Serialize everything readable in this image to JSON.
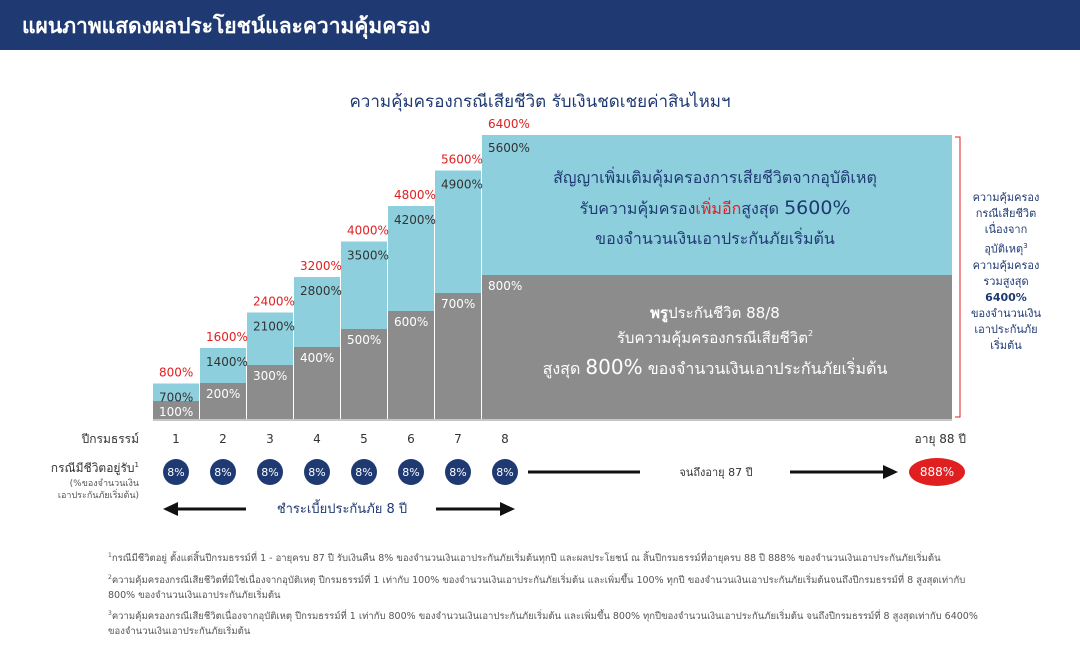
{
  "header": {
    "title": "แผนภาพแสดงผลประโยชน์และความคุ้มครอง"
  },
  "subtitle": "ความคุ้มครองกรณีเสียชีวิต รับเงินชดเชยค่าสินไหมฯ",
  "colors": {
    "header_bg": "#1f3a73",
    "light_blue": "#8ecfdd",
    "gray": "#8c8c8c",
    "dark_navy": "#1f3a73",
    "red": "#e02020"
  },
  "chart_data": {
    "type": "bar",
    "stacked": true,
    "categories": [
      "1",
      "2",
      "3",
      "4",
      "5",
      "6",
      "7",
      "8"
    ],
    "series": [
      {
        "values": [
          100,
          200,
          300,
          400,
          500,
          600,
          700,
          800
        ],
        "labels": [
          "100%",
          "200%",
          "300%",
          "400%",
          "500%",
          "600%",
          "700%",
          "800%"
        ]
      },
      {
        "values": [
          700,
          1400,
          2100,
          2800,
          3500,
          4200,
          4900,
          5600
        ],
        "labels": [
          "700%",
          "1400%",
          "2100%",
          "2800%",
          "3500%",
          "4200%",
          "4900%",
          "5600%"
        ]
      }
    ],
    "totals": [
      800,
      1600,
      2400,
      3200,
      4000,
      4800,
      5600,
      6400
    ],
    "total_labels": [
      "800%",
      "1600%",
      "2400%",
      "3200%",
      "4000%",
      "4800%",
      "5600%",
      "6400%"
    ],
    "xlabel": "ปีกรมธรรม์",
    "end_label": "อายุ 88 ปี",
    "blue_box": {
      "line1": "สัญญาเพิ่มเติมคุ้มครองการเสียชีวิตจากอุบัติเหตุ",
      "line2_pre": "รับความคุ้มครอง",
      "line2_red": "เพิ่มอีก",
      "line2_post": "สูงสุด ",
      "line2_big": "5600%",
      "line3": "ของจำนวนเงินเอาประกันภัยเริ่มต้น"
    },
    "gray_box": {
      "line1_bold": "พรู",
      "line1_rest": "ประกันชีวิต 88/8",
      "line2": "รับความคุ้มครองกรณีเสียชีวิต",
      "line2_sup": "2",
      "line3_pre": "สูงสุด ",
      "line3_big": "800%",
      "line3_post": " ของจำนวนเงินเอาประกันภัยเริ่มต้น"
    }
  },
  "survival": {
    "label": "กรณีมีชีวิตอยู่รับ",
    "label_sup": "1",
    "sub1": "(%ของจำนวนเงิน",
    "sub2": "เอาประกันภัยเริ่มต้น)",
    "values": [
      "8%",
      "8%",
      "8%",
      "8%",
      "8%",
      "8%",
      "8%",
      "8%"
    ],
    "until_text": "จนถึงอายุ 87 ปี",
    "final": "888%"
  },
  "premium": {
    "label": "ชำระเบี้ยประกันภัย 8 ปี"
  },
  "side_note": {
    "l1": "ความคุ้มครอง",
    "l2": "กรณีเสียชีวิต",
    "l3": "เนื่องจาก",
    "l4": "อุบัติเหตุ",
    "l4_sup": "3",
    "l5": "ความคุ้มครอง",
    "l6": "รวมสูงสุด",
    "l7": "6400%",
    "l8": "ของจำนวนเงิน",
    "l9": "เอาประกันภัย",
    "l10": "เริ่มต้น"
  },
  "footnotes": [
    {
      "sup": "1",
      "text": "กรณีมีชีวิตอยู่ ตั้งแต่สิ้นปีกรมธรรม์ที่ 1 - อายุครบ 87 ปี รับเงินคืน 8% ของจำนวนเงินเอาประกันภัยเริ่มต้นทุกปี และผลประโยชน์ ณ สิ้นปีกรมธรรม์ที่อายุครบ 88 ปี 888% ของจำนวนเงินเอาประกันภัยเริ่มต้น"
    },
    {
      "sup": "2",
      "text": "ความคุ้มครองกรณีเสียชีวิตที่มิใช่เนื่องจากอุบัติเหตุ ปีกรมธรรม์ที่ 1 เท่ากับ 100% ของจำนวนเงินเอาประกันภัยเริ่มต้น และเพิ่มขึ้น 100% ทุกปี ของจำนวนเงินเอาประกันภัยเริ่มต้นจนถึงปีกรมธรรม์ที่ 8 สูงสุดเท่ากับ 800% ของจำนวนเงินเอาประกันภัยเริ่มต้น"
    },
    {
      "sup": "3",
      "text": "ความคุ้มครองกรณีเสียชีวิตเนื่องจากอุบัติเหตุ ปีกรมธรรม์ที่ 1 เท่ากับ 800% ของจำนวนเงินเอาประกันภัยเริ่มต้น และเพิ่มขึ้น 800% ทุกปีของจำนวนเงินเอาประกันภัยเริ่มต้น จนถึงปีกรมธรรม์ที่ 8 สูงสุดเท่ากับ 6400% ของจำนวนเงินเอาประกันภัยเริ่มต้น"
    }
  ]
}
